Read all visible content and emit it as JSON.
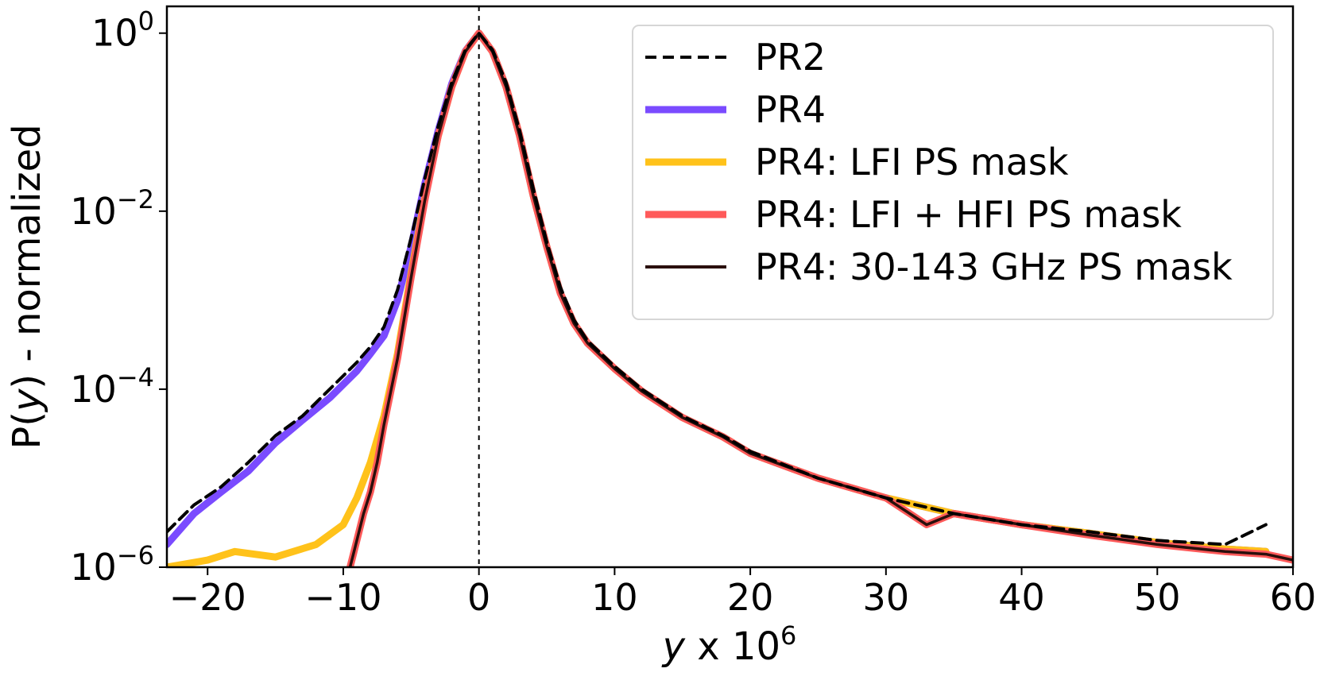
{
  "chart_data": {
    "type": "line",
    "xlabel": "y x 10^6",
    "ylabel": "P(y) - normalized",
    "xlim": [
      -23,
      60
    ],
    "ylim": [
      1e-06,
      2
    ],
    "yscale": "log",
    "xticks": [
      -20,
      -10,
      0,
      10,
      20,
      30,
      40,
      50,
      60
    ],
    "xtick_labels": [
      "−20",
      "−10",
      "0",
      "10",
      "20",
      "30",
      "40",
      "50",
      "60"
    ],
    "yticks": [
      1e-06,
      0.0001,
      0.01,
      1
    ],
    "ytick_labels": [
      {
        "base": "10",
        "exp": "−6"
      },
      {
        "base": "10",
        "exp": "−4"
      },
      {
        "base": "10",
        "exp": "−2"
      },
      {
        "base": "10",
        "exp": "0"
      }
    ],
    "grid": false,
    "legend_position": "upper-right",
    "vline": {
      "x": 0,
      "style": "dashed",
      "color": "#000000"
    },
    "series": [
      {
        "name": "PR2",
        "color": "#000000",
        "style": "dashed",
        "x": [
          -23,
          -21,
          -19,
          -17,
          -15,
          -13,
          -11,
          -9,
          -8,
          -7,
          -6,
          -5,
          -4,
          -3,
          -2,
          -1,
          0,
          1,
          2,
          3,
          4,
          5,
          6,
          7,
          8,
          10,
          12,
          15,
          18,
          20,
          25,
          30,
          35,
          40,
          45,
          50,
          55,
          58
        ],
        "y": [
          2.5e-06,
          5e-06,
          8e-06,
          1.5e-05,
          3e-05,
          5e-05,
          0.0001,
          0.0002,
          0.0003,
          0.0005,
          0.0013,
          0.005,
          0.023,
          0.09,
          0.28,
          0.65,
          1.0,
          0.65,
          0.28,
          0.08,
          0.018,
          0.0045,
          0.0014,
          0.0006,
          0.00035,
          0.00018,
          0.0001,
          5e-05,
          3e-05,
          2e-05,
          1e-05,
          6e-06,
          4e-06,
          3e-06,
          2.5e-06,
          2e-06,
          1.8e-06,
          3e-06
        ]
      },
      {
        "name": "PR4",
        "color": "#7a4bff",
        "style": "solid",
        "x": [
          -23,
          -21,
          -19,
          -17,
          -15,
          -13,
          -11,
          -9,
          -8,
          -7,
          -6,
          -5,
          -4,
          -3,
          -2,
          -1,
          0,
          1,
          2,
          3,
          4,
          5,
          6,
          7,
          8,
          10,
          12,
          15,
          18,
          20,
          25,
          30,
          35,
          40,
          45,
          50,
          55,
          58
        ],
        "y": [
          1.8e-06,
          4e-06,
          7e-06,
          1.2e-05,
          2.5e-05,
          4.5e-05,
          8e-05,
          0.00016,
          0.00025,
          0.0004,
          0.001,
          0.004,
          0.02,
          0.08,
          0.27,
          0.63,
          1.0,
          0.62,
          0.25,
          0.07,
          0.015,
          0.004,
          0.0012,
          0.00055,
          0.00033,
          0.00017,
          9.5e-05,
          4.8e-05,
          2.9e-05,
          1.9e-05,
          1e-05,
          6e-06,
          4e-06,
          3e-06,
          2.4e-06,
          1.9e-06,
          1.6e-06,
          1.5e-06
        ]
      },
      {
        "name": "PR4: LFI PS mask",
        "color": "#ffc21a",
        "style": "solid",
        "x": [
          -23,
          -20,
          -18,
          -15,
          -12,
          -10,
          -9,
          -8,
          -7,
          -6,
          -5,
          -4,
          -3,
          -2,
          -1,
          0,
          1,
          2,
          3,
          4,
          5,
          6,
          7,
          8,
          10,
          12,
          15,
          18,
          20,
          25,
          30,
          35,
          40,
          45,
          50,
          55,
          58
        ],
        "y": [
          1e-06,
          1.2e-06,
          1.5e-06,
          1.3e-06,
          1.8e-06,
          3e-06,
          6e-06,
          1.5e-05,
          5e-05,
          0.00025,
          0.002,
          0.014,
          0.07,
          0.25,
          0.62,
          1.0,
          0.62,
          0.25,
          0.07,
          0.015,
          0.004,
          0.0012,
          0.00055,
          0.00033,
          0.00017,
          9.5e-05,
          4.8e-05,
          2.9e-05,
          1.9e-05,
          1e-05,
          6e-06,
          4e-06,
          3e-06,
          2.4e-06,
          1.9e-06,
          1.6e-06,
          1.5e-06
        ]
      },
      {
        "name": "PR4: LFI + HFI PS mask",
        "color": "#ff5a5a",
        "style": "solid",
        "x": [
          -9.5,
          -9,
          -8.5,
          -8,
          -7.5,
          -7,
          -6,
          -5,
          -4,
          -3,
          -2,
          -1,
          0,
          1,
          2,
          3,
          4,
          5,
          6,
          7,
          8,
          10,
          12,
          15,
          18,
          20,
          25,
          30,
          33,
          35,
          40,
          45,
          50,
          55,
          58,
          60
        ],
        "y": [
          1e-06,
          2e-06,
          4e-06,
          7e-06,
          1.5e-05,
          4e-05,
          0.00022,
          0.0018,
          0.013,
          0.07,
          0.25,
          0.62,
          1.0,
          0.62,
          0.25,
          0.07,
          0.015,
          0.004,
          0.0012,
          0.00055,
          0.00033,
          0.00017,
          9.5e-05,
          4.8e-05,
          2.9e-05,
          1.9e-05,
          1e-05,
          6e-06,
          3e-06,
          4e-06,
          3e-06,
          2.3e-06,
          1.8e-06,
          1.5e-06,
          1.4e-06,
          1.2e-06
        ]
      },
      {
        "name": "PR4: 30-143 GHz PS mask",
        "color": "#2a0f0c",
        "style": "solid",
        "x": [
          -9.5,
          -9,
          -8.5,
          -8,
          -7.5,
          -7,
          -6,
          -5,
          -4,
          -3,
          -2,
          -1,
          0,
          1,
          2,
          3,
          4,
          5,
          6,
          7,
          8,
          10,
          12,
          15,
          18,
          20,
          25,
          30,
          33,
          35,
          40,
          45,
          50,
          55,
          58,
          60
        ],
        "y": [
          1e-06,
          2e-06,
          4e-06,
          7e-06,
          1.5e-05,
          4e-05,
          0.00022,
          0.0018,
          0.013,
          0.07,
          0.25,
          0.62,
          1.0,
          0.62,
          0.25,
          0.07,
          0.015,
          0.004,
          0.0012,
          0.00055,
          0.00033,
          0.00017,
          9.5e-05,
          4.8e-05,
          2.9e-05,
          1.9e-05,
          1e-05,
          6e-06,
          3e-06,
          4e-06,
          3e-06,
          2.3e-06,
          1.8e-06,
          1.5e-06,
          1.4e-06,
          1.2e-06
        ]
      }
    ]
  }
}
